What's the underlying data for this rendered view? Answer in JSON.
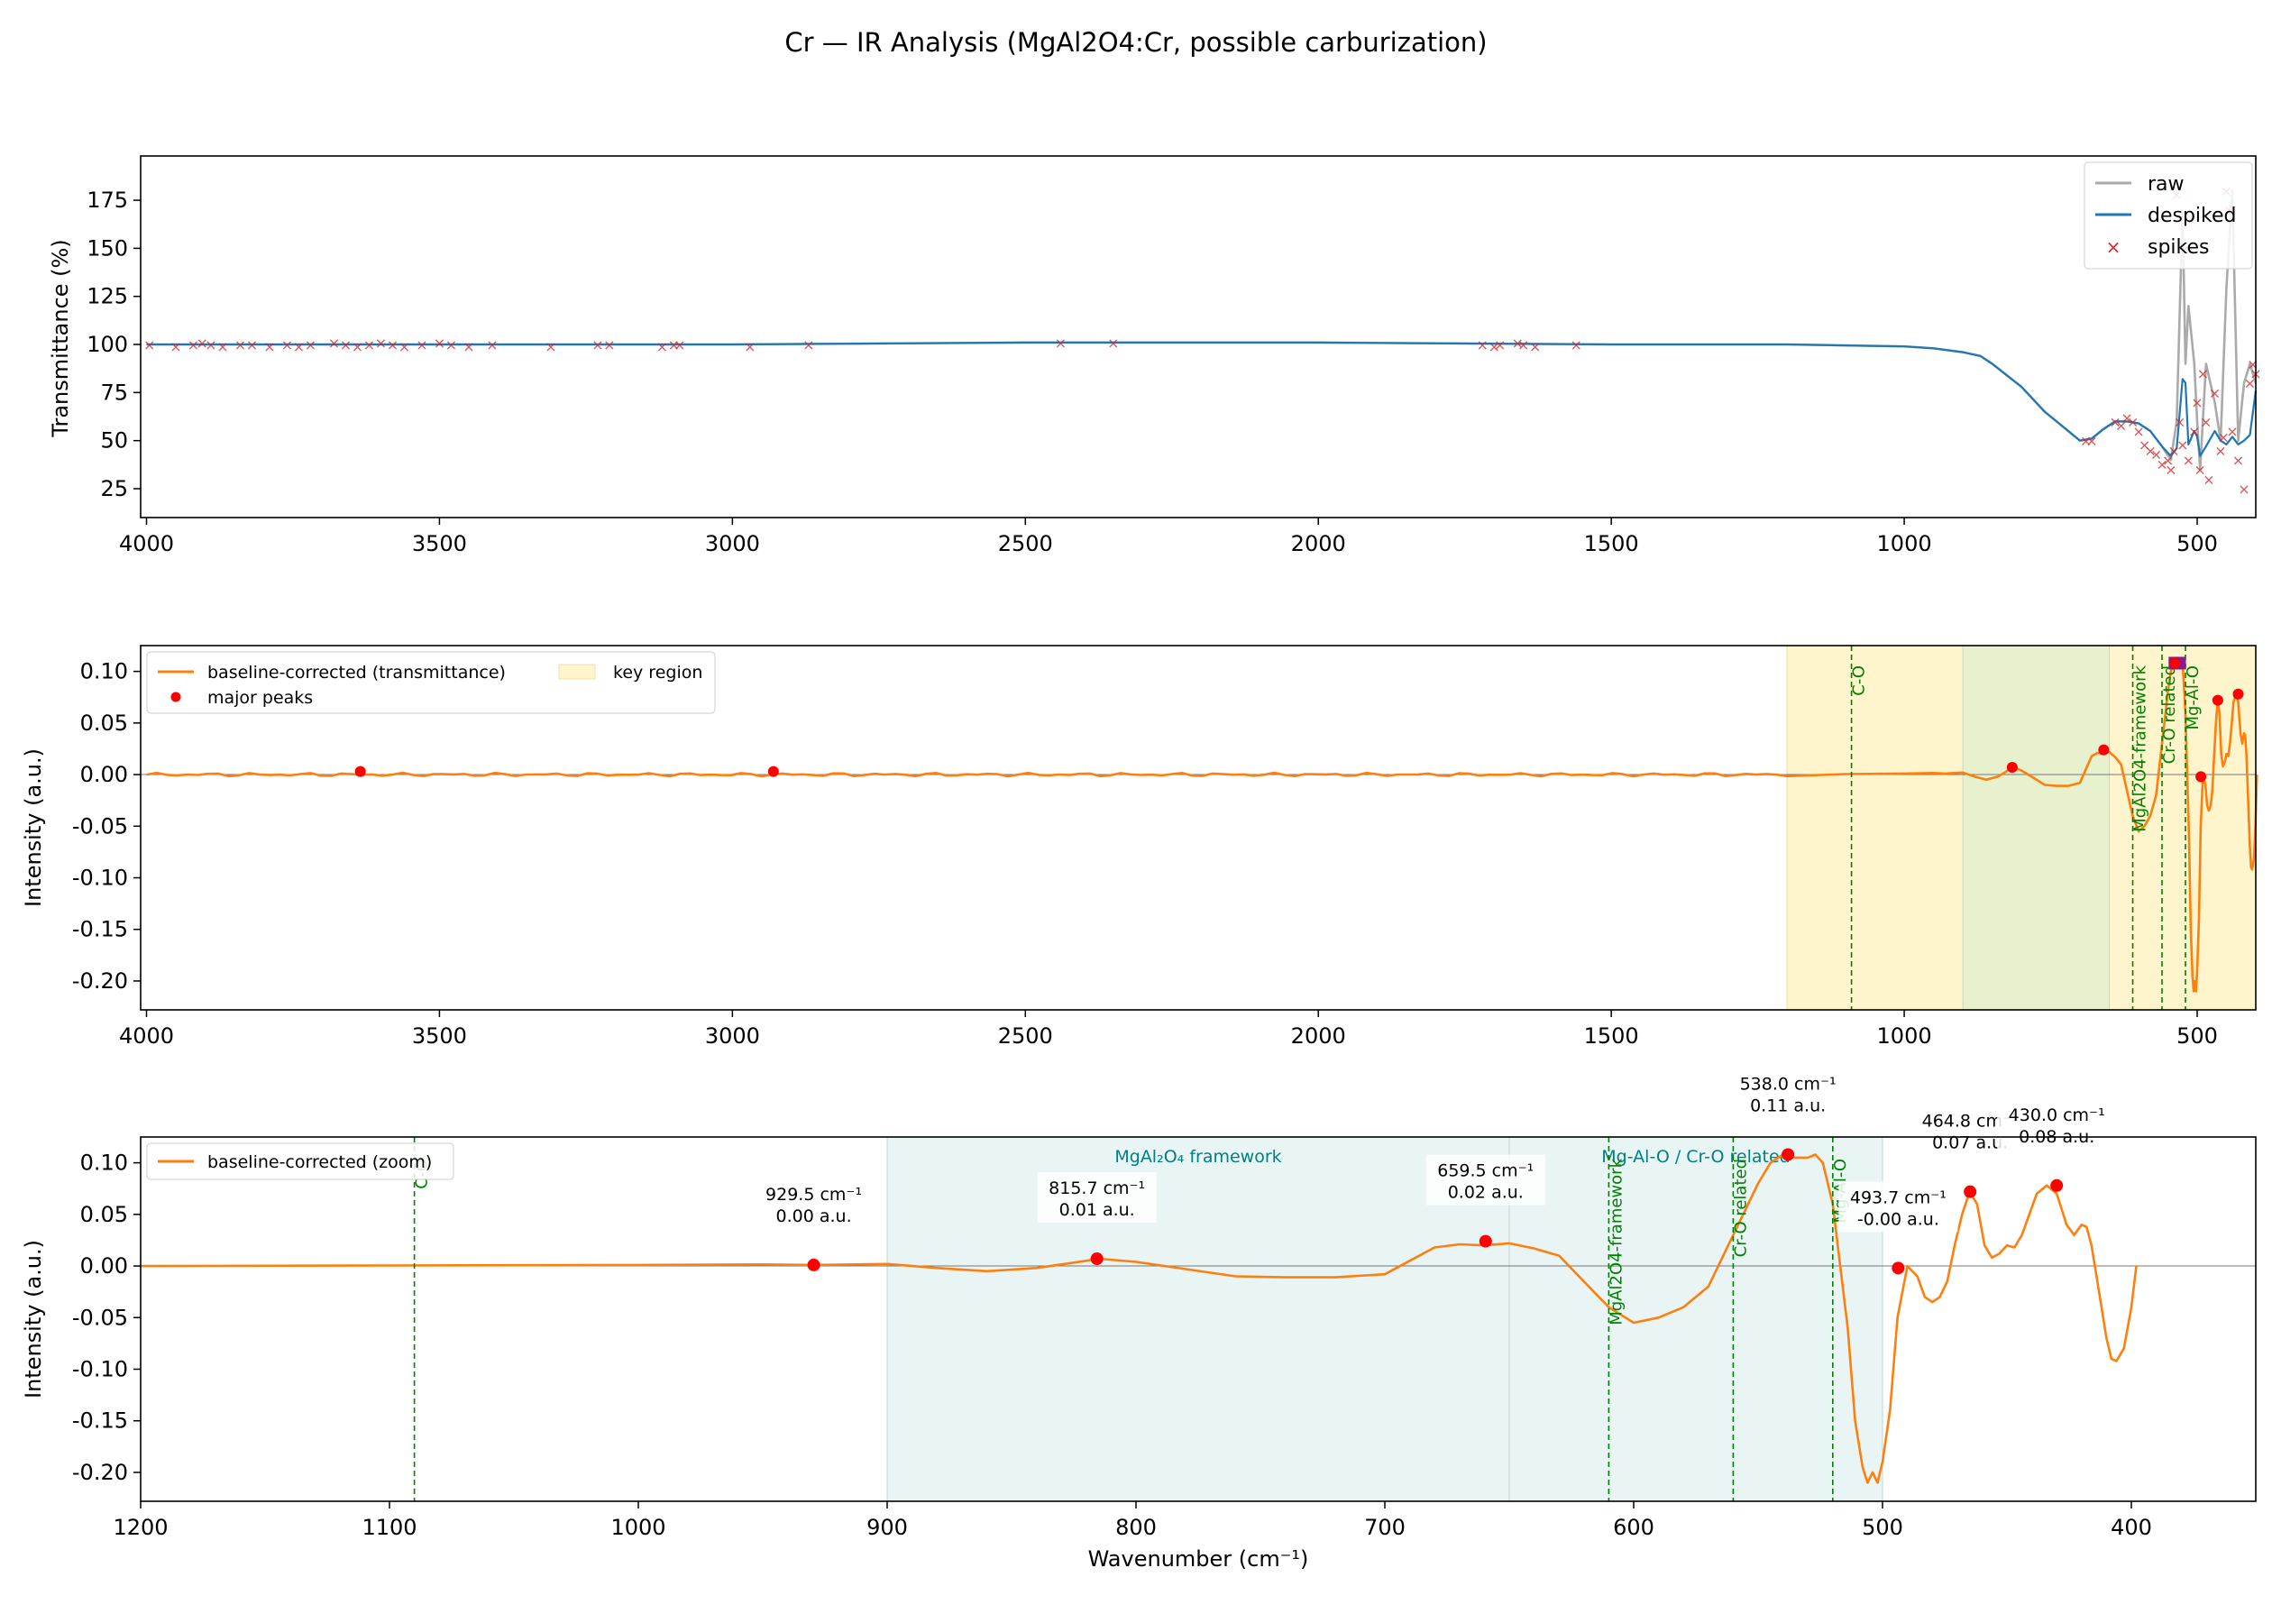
{
  "figure": {
    "title": "Cr — IR Analysis (MgAl2O4:Cr, possible carburization)"
  },
  "colors": {
    "raw": "#aaaaaa",
    "despiked": "#1f77b4",
    "spikes": "#d62728",
    "corrected": "#ff7f0e",
    "peaks": "#ff0000",
    "vline": "#008000",
    "key_region": "#fff5cc",
    "green_region": "#d6ecd0",
    "teal_region": "#cfe6e6",
    "teal_text": "#008080",
    "zero_line": "#777777"
  },
  "chart_data": [
    {
      "type": "line",
      "xlim": [
        4010,
        400
      ],
      "ylim": [
        10,
        198
      ],
      "xticks": [
        4000,
        3500,
        3000,
        2500,
        2000,
        1500,
        1000,
        500
      ],
      "yticks": [
        25,
        50,
        75,
        100,
        125,
        150,
        175
      ],
      "ylabel": "Transmittance (%)",
      "xlabel": "",
      "legend": {
        "position": "top-right",
        "entries": [
          "raw",
          "despiked",
          "spikes"
        ]
      },
      "series": [
        {
          "name": "raw",
          "x": [
            4000,
            3500,
            3000,
            2500,
            2000,
            1500,
            1200,
            1000,
            950,
            900,
            870,
            850,
            800,
            760,
            720,
            700,
            680,
            660,
            640,
            620,
            600,
            580,
            560,
            545,
            535,
            525,
            520,
            515,
            505,
            500,
            495,
            485,
            470,
            460,
            450,
            440,
            430,
            420,
            410,
            400
          ],
          "y": [
            100,
            100,
            100,
            101,
            101,
            100,
            100,
            99,
            98,
            96,
            94,
            90,
            78,
            65,
            55,
            50,
            51,
            56,
            60,
            60,
            59,
            55,
            47,
            40,
            60,
            170,
            90,
            120,
            90,
            60,
            35,
            90,
            70,
            50,
            130,
            180,
            50,
            80,
            90,
            80
          ]
        },
        {
          "name": "despiked",
          "x": [
            4000,
            3500,
            3000,
            2500,
            2000,
            1500,
            1200,
            1000,
            950,
            900,
            870,
            850,
            800,
            760,
            720,
            700,
            680,
            660,
            640,
            620,
            600,
            580,
            560,
            545,
            535,
            525,
            520,
            515,
            505,
            500,
            495,
            485,
            470,
            460,
            450,
            440,
            430,
            420,
            410,
            400
          ],
          "y": [
            100,
            100,
            100,
            101,
            101,
            100,
            100,
            99,
            98,
            96,
            94,
            90,
            78,
            65,
            55,
            50,
            51,
            56,
            60,
            60,
            59,
            55,
            47,
            42,
            46,
            82,
            80,
            48,
            55,
            52,
            42,
            47,
            55,
            50,
            48,
            52,
            48,
            50,
            53,
            76
          ]
        }
      ],
      "spikes": {
        "x": [
          3995,
          3950,
          3920,
          3905,
          3890,
          3870,
          3840,
          3820,
          3790,
          3760,
          3740,
          3720,
          3680,
          3660,
          3640,
          3620,
          3600,
          3580,
          3560,
          3530,
          3500,
          3480,
          3450,
          3410,
          3310,
          3230,
          3210,
          3120,
          3100,
          3090,
          2970,
          2870,
          2440,
          2350,
          1720,
          1700,
          1690,
          1660,
          1650,
          1630,
          1560,
          690,
          680,
          640,
          630,
          620,
          610,
          600,
          590,
          580,
          570,
          560,
          550,
          545,
          540,
          535,
          530,
          525,
          520,
          515,
          510,
          505,
          500,
          495,
          490,
          485,
          480,
          470,
          460,
          455,
          450,
          445,
          440,
          430,
          420,
          410,
          405,
          400
        ],
        "y": [
          100,
          99,
          100,
          101,
          100,
          99,
          100,
          100,
          99,
          100,
          99,
          100,
          101,
          100,
          99,
          100,
          101,
          100,
          99,
          100,
          101,
          100,
          99,
          100,
          99,
          100,
          100,
          99,
          100,
          100,
          99,
          100,
          101,
          101,
          100,
          99,
          100,
          101,
          100,
          99,
          100,
          50,
          50,
          60,
          58,
          62,
          60,
          55,
          48,
          45,
          43,
          38,
          40,
          35,
          45,
          178,
          60,
          48,
          150,
          40,
          165,
          55,
          70,
          35,
          85,
          60,
          30,
          75,
          45,
          52,
          180,
          170,
          55,
          40,
          25,
          80,
          90,
          85
        ]
      }
    },
    {
      "type": "line",
      "xlim": [
        4010,
        400
      ],
      "ylim": [
        -0.228,
        0.125
      ],
      "xticks": [
        4000,
        3500,
        3000,
        2500,
        2000,
        1500,
        1000,
        500
      ],
      "yticks": [
        0.1,
        0.05,
        0.0,
        -0.05,
        -0.1,
        -0.15,
        -0.2
      ],
      "ylabel": "Intensity (a.u.)",
      "xlabel": "",
      "legend": {
        "position": "top-left",
        "entries": [
          "baseline-corrected (transmittance)",
          "major peaks",
          "key region"
        ]
      },
      "regions": [
        {
          "x": [
            1200,
            400
          ],
          "kind": "key"
        },
        {
          "x": [
            900,
            650
          ],
          "kind": "green"
        }
      ],
      "vlines": [
        {
          "x": 1090,
          "label": "C-O"
        },
        {
          "x": 610,
          "label": "MgAl2O4-framework"
        },
        {
          "x": 560,
          "label": "Cr-O related"
        },
        {
          "x": 520,
          "label": "Mg-Al-O"
        }
      ],
      "highlight_markers": {
        "x": [
          538,
          530
        ],
        "y": [
          0.108,
          0.108
        ]
      },
      "peaks": {
        "x": [
          3635,
          2930,
          815.7,
          659.5,
          538,
          493.7,
          464.8,
          430
        ],
        "y": [
          0.003,
          0.003,
          0.007,
          0.024,
          0.108,
          -0.002,
          0.072,
          0.078
        ]
      }
    },
    {
      "type": "line",
      "xlim": [
        1200,
        350
      ],
      "ylim": [
        -0.228,
        0.125
      ],
      "xticks": [
        1200,
        1100,
        1000,
        900,
        800,
        700,
        600,
        500,
        400
      ],
      "yticks": [
        0.1,
        0.05,
        0.0,
        -0.05,
        -0.1,
        -0.15,
        -0.2
      ],
      "ylabel": "Intensity (a.u.)",
      "xlabel": "Wavenumber (cm⁻¹)",
      "legend": {
        "position": "top-left",
        "entries": [
          "baseline-corrected (zoom)"
        ]
      },
      "regions": [
        {
          "x": [
            900,
            650
          ],
          "label": "MgAl₂O₄ framework"
        },
        {
          "x": [
            650,
            500
          ],
          "label": "Mg-Al-O / Cr-O related"
        }
      ],
      "vlines": [
        {
          "x": 1090,
          "label": "C-O"
        },
        {
          "x": 610,
          "label": "MgAl2O4-framework"
        },
        {
          "x": 560,
          "label": "Cr-O related"
        },
        {
          "x": 520,
          "label": "Mg-Al-O"
        }
      ],
      "peaks": [
        {
          "x": 929.5,
          "y": 0.001,
          "label1": "929.5 cm⁻¹",
          "label2": "0.00 a.u."
        },
        {
          "x": 815.7,
          "y": 0.007,
          "label1": "815.7 cm⁻¹",
          "label2": "0.01 a.u."
        },
        {
          "x": 659.5,
          "y": 0.024,
          "label1": "659.5 cm⁻¹",
          "label2": "0.02 a.u."
        },
        {
          "x": 538.0,
          "y": 0.108,
          "label1": "538.0 cm⁻¹",
          "label2": "0.11 a.u."
        },
        {
          "x": 493.7,
          "y": -0.002,
          "label1": "493.7 cm⁻¹",
          "label2": "-0.00 a.u."
        },
        {
          "x": 464.8,
          "y": 0.072,
          "label1": "464.8 cm⁻¹",
          "label2": "0.07 a.u."
        },
        {
          "x": 430.0,
          "y": 0.078,
          "label1": "430.0 cm⁻¹",
          "label2": "0.08 a.u."
        }
      ]
    }
  ],
  "corrected_curve": {
    "x": [
      1200,
      1100,
      1000,
      950,
      930,
      900,
      880,
      860,
      840,
      820,
      815,
      800,
      780,
      760,
      740,
      720,
      700,
      690,
      680,
      670,
      660,
      650,
      640,
      630,
      620,
      610,
      600,
      590,
      580,
      570,
      560,
      550,
      545,
      540,
      535,
      530,
      527,
      524,
      520,
      517,
      514,
      511,
      508,
      506,
      504,
      502,
      500,
      497,
      494,
      490,
      486,
      483,
      480,
      477,
      474,
      471,
      468,
      465,
      462,
      459,
      456,
      453,
      450,
      447,
      444,
      441,
      438,
      434,
      430,
      426,
      423,
      420,
      418,
      416,
      414,
      412,
      410,
      408,
      406,
      403,
      400,
      398
    ],
    "y": [
      0,
      0.0005,
      0.001,
      0.0015,
      0.001,
      0.002,
      -0.002,
      -0.005,
      -0.002,
      0.005,
      0.007,
      0.004,
      -0.003,
      -0.01,
      -0.011,
      -0.011,
      -0.008,
      0.005,
      0.018,
      0.021,
      0.02,
      0.022,
      0.017,
      0.01,
      -0.015,
      -0.04,
      -0.055,
      -0.05,
      -0.04,
      -0.02,
      0.03,
      0.08,
      0.1,
      0.108,
      0.105,
      0.105,
      0.108,
      0.1,
      0.06,
      0.0,
      -0.06,
      -0.15,
      -0.195,
      -0.21,
      -0.2,
      -0.21,
      -0.19,
      -0.14,
      -0.05,
      0.0,
      -0.01,
      -0.03,
      -0.035,
      -0.03,
      -0.015,
      0.02,
      0.05,
      0.072,
      0.06,
      0.02,
      0.008,
      0.012,
      0.02,
      0.018,
      0.03,
      0.05,
      0.07,
      0.078,
      0.07,
      0.04,
      0.03,
      0.04,
      0.038,
      0.02,
      -0.01,
      -0.04,
      -0.07,
      -0.09,
      -0.092,
      -0.08,
      -0.04,
      0.0
    ]
  }
}
